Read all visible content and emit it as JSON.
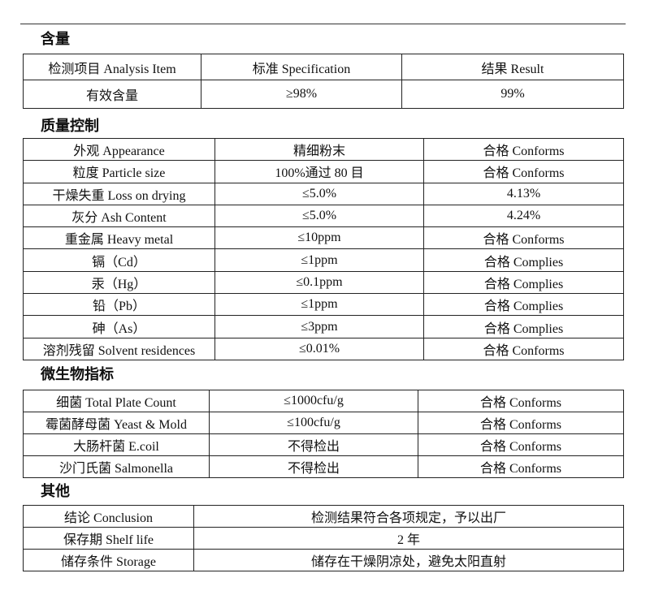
{
  "sections": {
    "content": "含量",
    "quality": "质量控制",
    "micro": "微生物指标",
    "other": "其他"
  },
  "content_table": {
    "header": [
      "检测项目  Analysis Item",
      "标准    Specification",
      "结果  Result"
    ],
    "rows": [
      [
        "有效含量",
        "≥98%",
        "99%"
      ]
    ]
  },
  "quality_table": {
    "rows": [
      [
        "外观  Appearance",
        "精细粉末",
        "合格 Conforms"
      ],
      [
        "粒度  Particle size",
        "100%通过 80 目",
        "合格 Conforms"
      ],
      [
        "干燥失重 Loss on drying",
        "≤5.0%",
        "4.13%"
      ],
      [
        "灰分 Ash Content",
        "≤5.0%",
        "4.24%"
      ],
      [
        "重金属  Heavy metal",
        "≤10ppm",
        "合格 Conforms"
      ],
      [
        "镉（Cd）",
        "≤1ppm",
        "合格 Complies"
      ],
      [
        "汞（Hg）",
        "≤0.1ppm",
        "合格 Complies"
      ],
      [
        "铅（Pb）",
        "≤1ppm",
        "合格 Complies"
      ],
      [
        "砷（As）",
        "≤3ppm",
        "合格 Complies"
      ],
      [
        "溶剂残留 Solvent residences",
        "≤0.01%",
        "合格 Conforms"
      ]
    ]
  },
  "micro_table": {
    "rows": [
      [
        "细菌  Total Plate Count",
        "≤1000cfu/g",
        "合格 Conforms"
      ],
      [
        "霉菌酵母菌  Yeast & Mold",
        "≤100cfu/g",
        "合格 Conforms"
      ],
      [
        "大肠杆菌    E.coil",
        "不得检出",
        "合格 Conforms"
      ],
      [
        "沙门氏菌    Salmonella",
        "不得检出",
        "合格 Conforms"
      ]
    ]
  },
  "other_table": {
    "rows": [
      [
        "结论  Conclusion",
        "检测结果符合各项规定，予以出厂"
      ],
      [
        "保存期  Shelf life",
        "2 年"
      ],
      [
        "储存条件 Storage",
        "储存在干燥阴凉处，避免太阳直射"
      ]
    ]
  }
}
